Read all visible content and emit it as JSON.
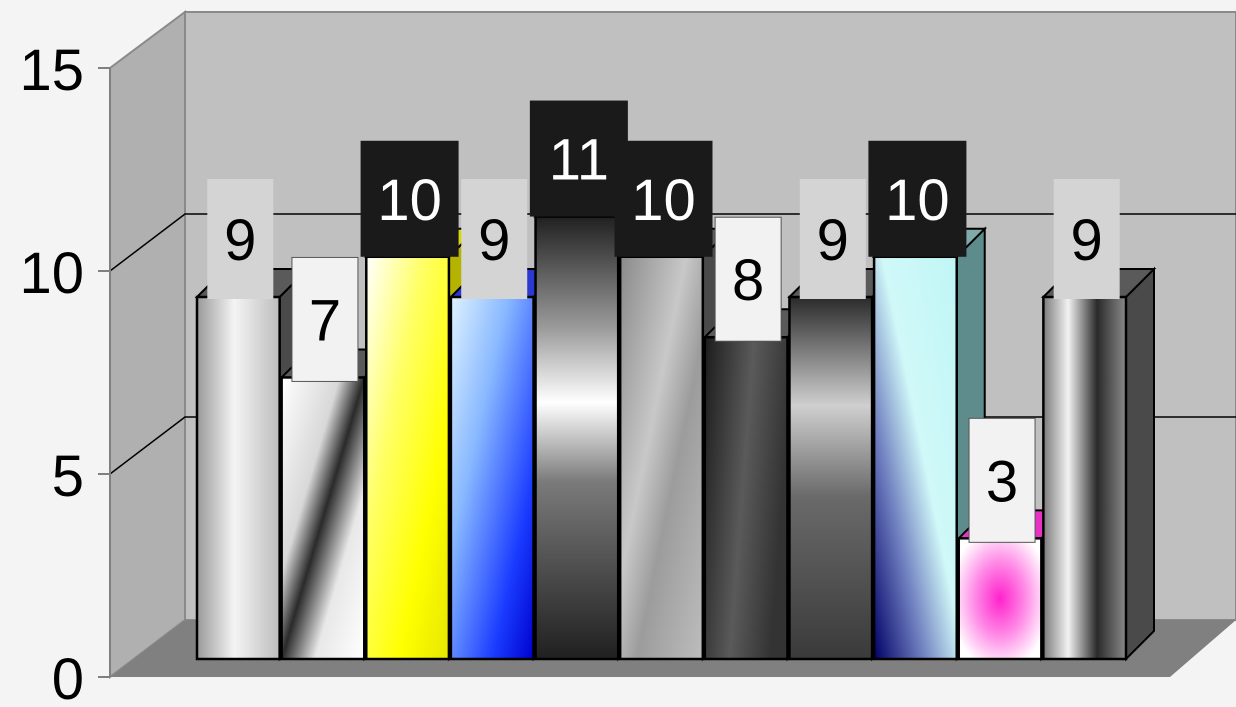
{
  "chart_data": {
    "type": "bar",
    "style": "3d-clustered-column",
    "title": "",
    "xlabel": "",
    "ylabel": "",
    "ylim": [
      0,
      15
    ],
    "yticks": [
      0,
      5,
      10,
      15
    ],
    "ytick_labels": [
      "0",
      "5",
      "10",
      "15"
    ],
    "grid": true,
    "legend": "none",
    "series": [
      {
        "label": "9",
        "value": 9,
        "fill": "silver-gradient",
        "label_style": "light"
      },
      {
        "label": "7",
        "value": 7,
        "fill": "white-black-diagonal",
        "label_style": "white"
      },
      {
        "label": "10",
        "value": 10,
        "fill": "yellow-gradient",
        "label_style": "dark"
      },
      {
        "label": "9",
        "value": 9,
        "fill": "blue-gradient",
        "label_style": "light"
      },
      {
        "label": "11",
        "value": 11,
        "fill": "chrome-horizontal",
        "label_style": "dark"
      },
      {
        "label": "10",
        "value": 10,
        "fill": "gray-diagonal",
        "label_style": "dark"
      },
      {
        "label": "8",
        "value": 8,
        "fill": "dark-gray-gradient",
        "label_style": "white"
      },
      {
        "label": "9",
        "value": 9,
        "fill": "chrome-vertical-gray",
        "label_style": "light"
      },
      {
        "label": "10",
        "value": 10,
        "fill": "cyan-navy-diagonal",
        "label_style": "dark"
      },
      {
        "label": "3",
        "value": 3,
        "fill": "magenta-white-burst",
        "label_style": "white"
      },
      {
        "label": "9",
        "value": 9,
        "fill": "silver-vertical",
        "label_style": "light"
      }
    ],
    "colors": {
      "wall": "#c0c0c0",
      "side_wall": "#b0b0b0",
      "floor": "#808080",
      "page": "#f4f4f4",
      "label_dark_bg": "#1a1a1a",
      "label_light_bg": "#d4d4d4",
      "label_white_bg": "#f2f2f2",
      "yellow": "#ffff00",
      "blue": "#1a1aff",
      "cyan": "#c8f8f8",
      "magenta": "#ff33cc"
    }
  }
}
